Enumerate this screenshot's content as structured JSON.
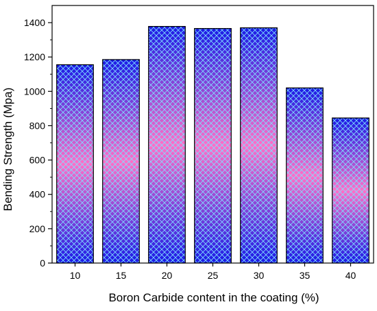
{
  "chart_data": {
    "type": "bar",
    "title": "",
    "xlabel": "Boron Carbide content in the coating (%)",
    "ylabel": "Bending Strength (Mpa)",
    "categories": [
      "10",
      "15",
      "20",
      "25",
      "30",
      "35",
      "40"
    ],
    "values": [
      1155,
      1185,
      1378,
      1366,
      1370,
      1020,
      845
    ],
    "ylim": [
      0,
      1500
    ],
    "yticks": [
      0,
      200,
      400,
      600,
      800,
      1000,
      1200,
      1400
    ],
    "grid": false,
    "legend": "none",
    "colors": {
      "bar_edge": "#000000",
      "bar_gradient_end": "#1a1ae6",
      "bar_gradient_mid": "#ff6fc8",
      "hatch": "#7fe0ff"
    }
  }
}
